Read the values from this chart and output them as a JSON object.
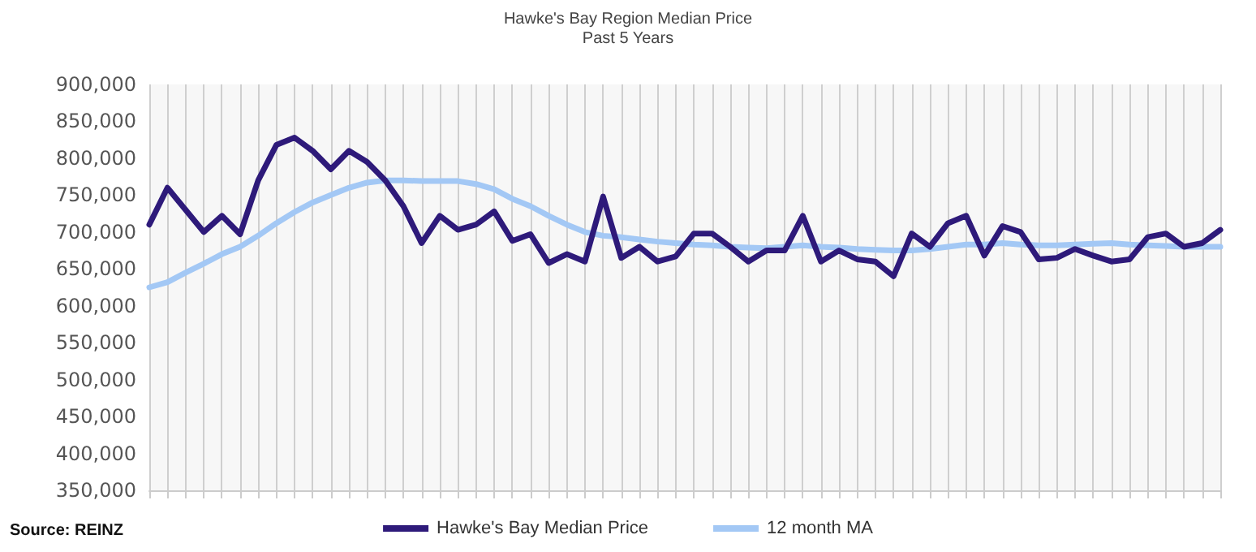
{
  "chart_data": {
    "type": "line",
    "title": "Hawke's Bay Region Median Price",
    "subtitle": "Past 5 Years",
    "annotations": [
      "Source: REINZ"
    ],
    "categories": [
      null,
      null,
      null,
      null,
      null,
      null,
      null,
      null,
      null,
      null,
      null,
      null,
      null,
      null,
      null,
      null,
      null,
      null,
      null,
      null,
      null,
      null,
      null,
      null,
      null,
      null,
      null,
      null,
      null,
      null,
      null,
      null,
      null,
      null,
      null,
      null,
      null,
      null,
      null,
      null,
      null,
      null,
      null,
      null,
      null,
      null,
      null,
      null,
      null,
      null,
      null,
      null,
      null,
      null,
      null,
      null,
      null,
      null,
      null,
      null
    ],
    "series": [
      {
        "name": "Hawke's Bay Median Price",
        "color": "#2e1a7a",
        "values": [
          710000,
          760000,
          730000,
          700000,
          722000,
          697000,
          770000,
          818000,
          828000,
          810000,
          785000,
          810000,
          795000,
          770000,
          735000,
          685000,
          722000,
          703000,
          710000,
          728000,
          688000,
          697000,
          658000,
          670000,
          660000,
          748000,
          665000,
          680000,
          660000,
          667000,
          698000,
          698000,
          680000,
          660000,
          675000,
          675000,
          722000,
          660000,
          675000,
          663000,
          660000,
          640000,
          698000,
          680000,
          712000,
          722000,
          668000,
          708000,
          700000,
          663000,
          665000,
          677000,
          668000,
          660000,
          663000,
          693000,
          698000,
          680000,
          685000,
          703000
        ]
      },
      {
        "name": "12 month MA",
        "color": "#a3c8f5",
        "values": [
          625000,
          632000,
          645000,
          657000,
          670000,
          680000,
          695000,
          712000,
          727000,
          740000,
          750000,
          760000,
          767000,
          770000,
          770000,
          769000,
          769000,
          769000,
          765000,
          758000,
          745000,
          735000,
          722000,
          710000,
          700000,
          695000,
          693000,
          690000,
          687000,
          685000,
          683000,
          682000,
          680000,
          679000,
          678000,
          680000,
          682000,
          680000,
          679000,
          677000,
          676000,
          675000,
          675000,
          677000,
          680000,
          683000,
          683000,
          685000,
          683000,
          682000,
          682000,
          683000,
          684000,
          685000,
          683000,
          682000,
          681000,
          680000,
          680000,
          680000
        ]
      }
    ],
    "ylim": [
      350000,
      900000
    ],
    "yticks": [
      {
        "value": 350000,
        "label": "350,000"
      },
      {
        "value": 400000,
        "label": "400,000"
      },
      {
        "value": 450000,
        "label": "450,000"
      },
      {
        "value": 500000,
        "label": "500,000"
      },
      {
        "value": 550000,
        "label": "550,000"
      },
      {
        "value": 600000,
        "label": "600,000"
      },
      {
        "value": 650000,
        "label": "650,000"
      },
      {
        "value": 700000,
        "label": "700,000"
      },
      {
        "value": 750000,
        "label": "750,000"
      },
      {
        "value": 800000,
        "label": "800,000"
      },
      {
        "value": 850000,
        "label": "850,000"
      },
      {
        "value": 900000,
        "label": "900,000"
      }
    ],
    "grid": "x",
    "legend": "bottom",
    "marker": "none",
    "line_style": "solid"
  }
}
